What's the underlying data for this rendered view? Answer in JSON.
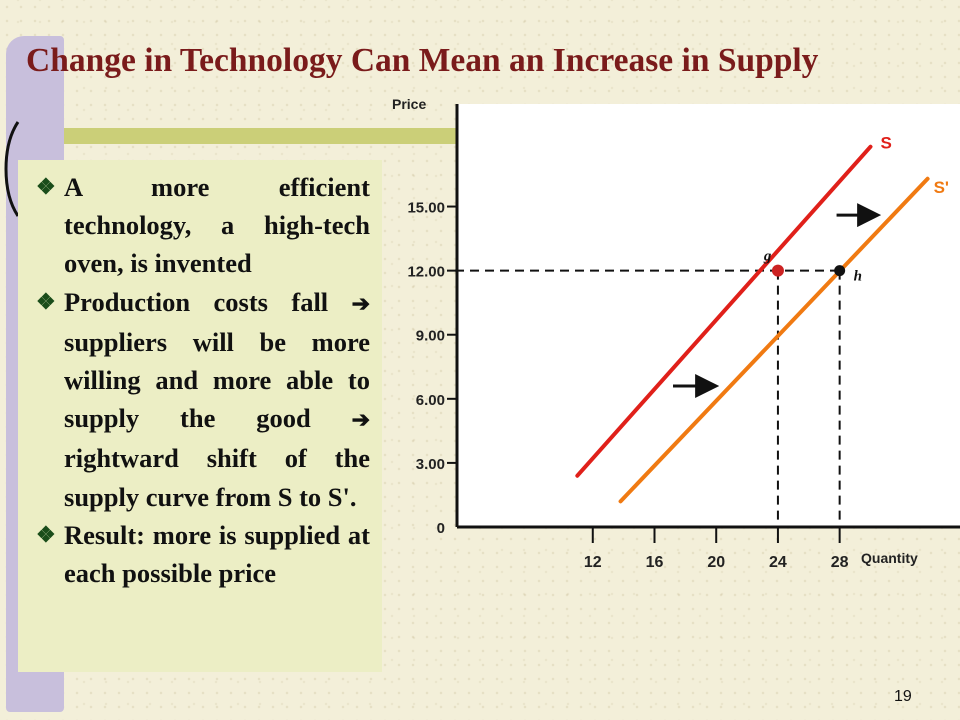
{
  "slide": {
    "title": "Change in Technology Can Mean an Increase in Supply",
    "page_number": "19",
    "bullets": [
      {
        "parts": [
          "A more efficient technology, a high-tech oven, is invented"
        ]
      },
      {
        "parts": [
          "Production costs fall",
          "suppliers will be more willing and more able to supply the good",
          "rightward shift of the supply curve from S to S'."
        ]
      },
      {
        "parts": [
          "Result: more is supplied at each possible price"
        ]
      }
    ],
    "colors": {
      "title": "#7a1b1b",
      "panel": "#eceec5",
      "supply_S": "#e0201a",
      "supply_S_prime": "#f07a12"
    },
    "icons": {
      "bullet": "diamond-bullet-icon",
      "arrow": "right-arrow-icon"
    }
  },
  "chart_data": {
    "type": "line",
    "ylabel": "Price",
    "xlabel": "Quantity",
    "y_ticks": [
      "0",
      "3.00",
      "6.00",
      "9.00",
      "12.00",
      "15.00"
    ],
    "y_tick_values": [
      0,
      3,
      6,
      9,
      12,
      15
    ],
    "x_ticks": [
      "12",
      "16",
      "20",
      "24",
      "28"
    ],
    "x_tick_values": [
      12,
      16,
      20,
      24,
      28
    ],
    "xlim": [
      3.2,
      35.8
    ],
    "ylim": [
      0,
      19.8
    ],
    "series": [
      {
        "name": "S",
        "color": "#e0201a",
        "x": [
          11,
          30
        ],
        "y": [
          2.4,
          17.8
        ]
      },
      {
        "name": "S'",
        "color": "#f07a12",
        "x": [
          13.8,
          33.7
        ],
        "y": [
          1.2,
          16.3
        ]
      }
    ],
    "points": [
      {
        "label": "g",
        "x": 24,
        "y": 12,
        "series": "S"
      },
      {
        "label": "h",
        "x": 28,
        "y": 12,
        "series": "S'"
      }
    ],
    "reference_lines": {
      "price": 12,
      "quantities": [
        24,
        28
      ]
    },
    "shift_arrows": [
      {
        "y": 6.6,
        "x_from": 17.2,
        "x_to": 19.8
      },
      {
        "y": 14.6,
        "x_from": 27.8,
        "x_to": 30.3
      }
    ]
  }
}
